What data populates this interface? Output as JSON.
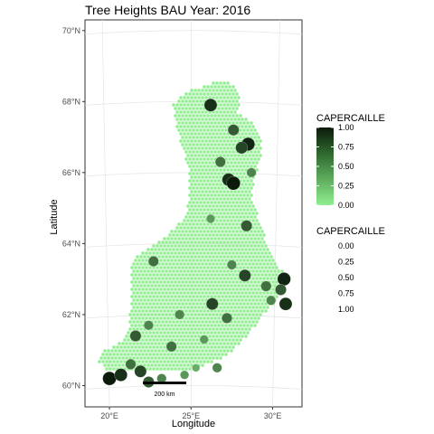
{
  "chart_data": {
    "type": "scatter",
    "title": "Tree Heights BAU Year: 2016",
    "xlabel": "Longitude",
    "ylabel": "Latitude",
    "x_ticks": [
      "20°E",
      "25°E",
      "30°E"
    ],
    "y_ticks": [
      "60°N",
      "62°N",
      "64°N",
      "66°N",
      "68°N",
      "70°N"
    ],
    "xlim": [
      18.5,
      31.8
    ],
    "ylim": [
      59.4,
      70.3
    ],
    "grid": true,
    "scale_bar": "200 km",
    "legend_position": "right",
    "legend_color": {
      "title": "CAPERCAILLE",
      "range": [
        0,
        1
      ],
      "labels": [
        "1.00",
        "0.75",
        "0.50",
        "0.25",
        "0.00"
      ],
      "low_color": "#90ee90",
      "high_color": "#0b1a0b"
    },
    "legend_size": {
      "title": "CAPERCAILLE",
      "labels": [
        "0.00",
        "0.25",
        "0.50",
        "0.75",
        "1.00"
      ]
    },
    "background_points_value": 0,
    "points": [
      {
        "lon": 26.2,
        "lat": 67.9,
        "value": 0.9
      },
      {
        "lon": 27.6,
        "lat": 67.2,
        "value": 0.7
      },
      {
        "lon": 28.5,
        "lat": 66.8,
        "value": 0.95
      },
      {
        "lon": 28.1,
        "lat": 66.7,
        "value": 0.8
      },
      {
        "lon": 26.8,
        "lat": 66.3,
        "value": 0.6
      },
      {
        "lon": 27.3,
        "lat": 65.8,
        "value": 0.9
      },
      {
        "lon": 27.6,
        "lat": 65.7,
        "value": 1.0
      },
      {
        "lon": 28.7,
        "lat": 66.0,
        "value": 0.5
      },
      {
        "lon": 28.4,
        "lat": 64.5,
        "value": 0.7
      },
      {
        "lon": 26.2,
        "lat": 64.7,
        "value": 0.4
      },
      {
        "lon": 22.7,
        "lat": 63.5,
        "value": 0.6
      },
      {
        "lon": 27.5,
        "lat": 63.4,
        "value": 0.5
      },
      {
        "lon": 28.3,
        "lat": 63.1,
        "value": 0.8
      },
      {
        "lon": 29.6,
        "lat": 62.8,
        "value": 0.6
      },
      {
        "lon": 30.7,
        "lat": 63.0,
        "value": 0.95
      },
      {
        "lon": 30.5,
        "lat": 62.7,
        "value": 0.7
      },
      {
        "lon": 29.9,
        "lat": 62.4,
        "value": 0.5
      },
      {
        "lon": 30.8,
        "lat": 62.3,
        "value": 0.9
      },
      {
        "lon": 26.3,
        "lat": 62.3,
        "value": 0.8
      },
      {
        "lon": 24.3,
        "lat": 62.0,
        "value": 0.5
      },
      {
        "lon": 27.2,
        "lat": 61.9,
        "value": 0.6
      },
      {
        "lon": 22.4,
        "lat": 61.7,
        "value": 0.5
      },
      {
        "lon": 21.6,
        "lat": 61.4,
        "value": 0.7
      },
      {
        "lon": 23.8,
        "lat": 61.1,
        "value": 0.6
      },
      {
        "lon": 25.8,
        "lat": 61.3,
        "value": 0.4
      },
      {
        "lon": 20.0,
        "lat": 60.2,
        "value": 1.0
      },
      {
        "lon": 20.7,
        "lat": 60.3,
        "value": 0.9
      },
      {
        "lon": 21.3,
        "lat": 60.6,
        "value": 0.6
      },
      {
        "lon": 21.9,
        "lat": 60.4,
        "value": 0.8
      },
      {
        "lon": 22.4,
        "lat": 60.1,
        "value": 0.7
      },
      {
        "lon": 23.2,
        "lat": 60.2,
        "value": 0.5
      },
      {
        "lon": 24.6,
        "lat": 60.3,
        "value": 0.4
      },
      {
        "lon": 25.3,
        "lat": 60.5,
        "value": 0.3
      },
      {
        "lon": 26.6,
        "lat": 60.5,
        "value": 0.5
      }
    ]
  }
}
